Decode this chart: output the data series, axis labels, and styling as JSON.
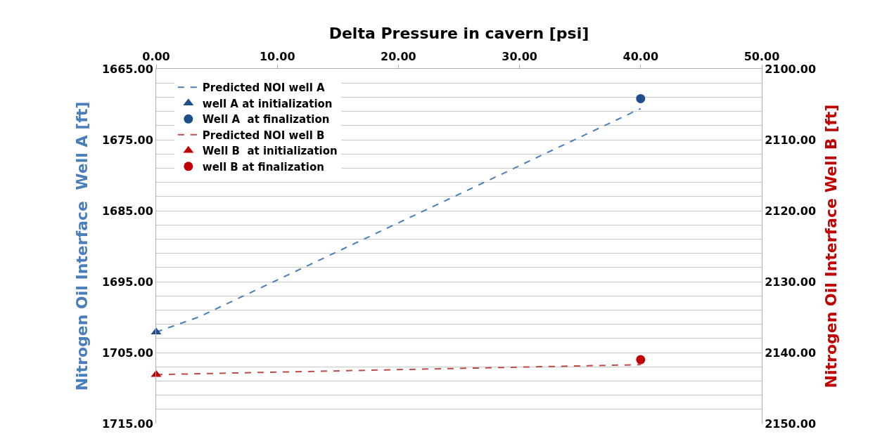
{
  "chart_data": {
    "type": "line",
    "xlabel": "Delta Pressure in cavern [psi]",
    "ylabel": "Nitrogen Oil Interface  Well A [ft]",
    "y2label": "Nitrogen Oil Interface Well B [ft]",
    "xlim": [
      0,
      50
    ],
    "xticks": [
      {
        "value": 0,
        "label": "0.00"
      },
      {
        "value": 10,
        "label": "10.00"
      },
      {
        "value": 20,
        "label": "20.00"
      },
      {
        "value": 30,
        "label": "30.00"
      },
      {
        "value": 40,
        "label": "40.00"
      },
      {
        "value": 50,
        "label": "50.00"
      }
    ],
    "ylim": [
      1715,
      1665
    ],
    "yticks": [
      {
        "value": 1665,
        "label": "1665.00"
      },
      {
        "value": 1667,
        "label": null
      },
      {
        "value": 1669,
        "label": null
      },
      {
        "value": 1671,
        "label": null
      },
      {
        "value": 1673,
        "label": null
      },
      {
        "value": 1675,
        "label": "1675.00"
      },
      {
        "value": 1677,
        "label": null
      },
      {
        "value": 1679,
        "label": null
      },
      {
        "value": 1681,
        "label": null
      },
      {
        "value": 1683,
        "label": null
      },
      {
        "value": 1685,
        "label": "1685.00"
      },
      {
        "value": 1687,
        "label": null
      },
      {
        "value": 1689,
        "label": null
      },
      {
        "value": 1691,
        "label": null
      },
      {
        "value": 1693,
        "label": null
      },
      {
        "value": 1695,
        "label": "1695.00"
      },
      {
        "value": 1697,
        "label": null
      },
      {
        "value": 1699,
        "label": null
      },
      {
        "value": 1701,
        "label": null
      },
      {
        "value": 1703,
        "label": null
      },
      {
        "value": 1705,
        "label": "1705.00"
      },
      {
        "value": 1707,
        "label": null
      },
      {
        "value": 1709,
        "label": null
      },
      {
        "value": 1711,
        "label": null
      },
      {
        "value": 1713,
        "label": null
      },
      {
        "value": 1715,
        "label": "1715.00"
      }
    ],
    "y2lim": [
      2150,
      2100
    ],
    "y2ticks": [
      {
        "value": 2100,
        "label": "2100.00"
      },
      {
        "value": 2110,
        "label": "2110.00"
      },
      {
        "value": 2120,
        "label": "2120.00"
      },
      {
        "value": 2130,
        "label": "2130.00"
      },
      {
        "value": 2140,
        "label": "2140.00"
      },
      {
        "value": 2150,
        "label": "2150.00"
      }
    ],
    "grid": "y",
    "legend": "top left",
    "series": [
      {
        "name": "Predicted NOI well A",
        "color": "#4a7ebb",
        "line_style": "dashed",
        "marker": "none",
        "x": [
          0,
          3.5,
          40
        ],
        "values": [
          1702.1,
          1700.0,
          1670.6
        ]
      },
      {
        "name": "well A at initialization",
        "type": "scatter",
        "color": "#1f4e8c",
        "marker": "triangle",
        "x": [
          0
        ],
        "values": [
          1702.1
        ]
      },
      {
        "name": "Well A  at finalization",
        "type": "scatter",
        "color": "#1f4e8c",
        "marker": "circle",
        "x": [
          40
        ],
        "values": [
          1669.2
        ]
      },
      {
        "name": "Predicted NOI well B",
        "color": "#be4b48",
        "line_style": "dashed",
        "marker": "none",
        "axis": "y2",
        "x": [
          0,
          40
        ],
        "values": [
          2143.1,
          2141.7
        ]
      },
      {
        "name": "Well B  at initialization",
        "type": "scatter",
        "color": "#c00000",
        "marker": "triangle",
        "axis": "y2",
        "x": [
          0
        ],
        "values": [
          2143.1
        ]
      },
      {
        "name": "well B at finalization",
        "type": "scatter",
        "color": "#c00000",
        "marker": "circle",
        "axis": "y2",
        "x": [
          40
        ],
        "values": [
          2141.0
        ]
      }
    ]
  }
}
